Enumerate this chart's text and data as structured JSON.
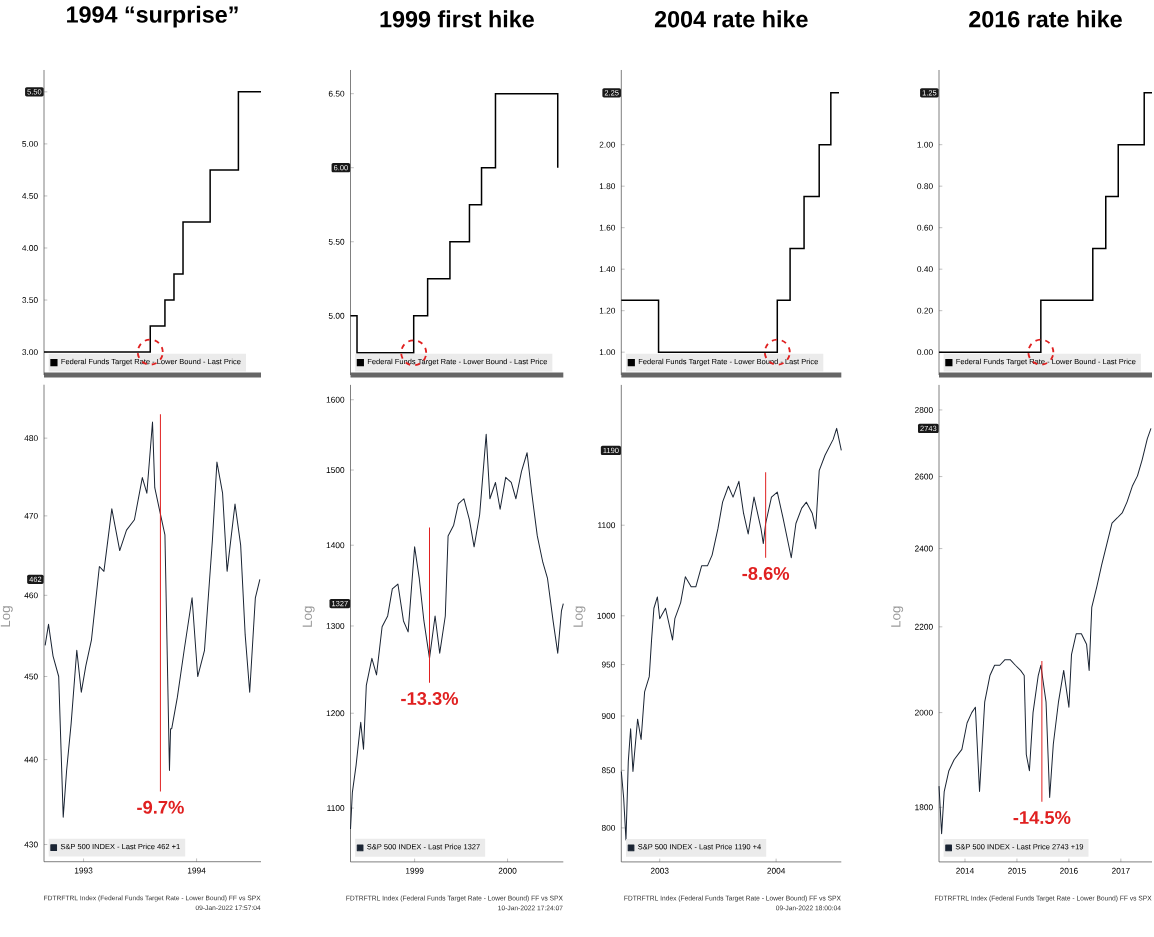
{
  "chart_data": [
    {
      "type": "step",
      "title": "1994 “surprise”",
      "x": [
        1993.15,
        1994.09,
        1994.22,
        1994.3,
        1994.38,
        1994.62,
        1994.87,
        1995.07
      ],
      "series": [
        {
          "name": "Federal Funds Target Rate - Lower Bound - Last Price",
          "color": "#000000",
          "values": [
            3,
            3.25,
            3.5,
            3.75,
            4.25,
            4.75,
            5.5,
            5.5
          ]
        }
      ],
      "xlim": [
        1993.15,
        1995.07
      ],
      "ylim": [
        2.78,
        5.71
      ],
      "yticks": [
        {
          "value": 3,
          "label": "3.00"
        },
        {
          "value": 3.5,
          "label": "3.50"
        },
        {
          "value": 4,
          "label": "4.00"
        },
        {
          "value": 4.5,
          "label": "4.50"
        },
        {
          "value": 5,
          "label": "5.00"
        },
        {
          "value": 5.5,
          "label": null
        }
      ],
      "tick_labels": "y",
      "legend": "bottom left",
      "annotations": [
        "5.50"
      ]
    },
    {
      "type": "line",
      "x": [
        1993.16,
        1993.19,
        1993.23,
        1993.28,
        1993.32,
        1993.35,
        1993.39,
        1993.44,
        1993.48,
        1993.52,
        1993.57,
        1993.64,
        1993.68,
        1993.75,
        1993.82,
        1993.88,
        1993.95,
        1994.02,
        1994.06,
        1994.11,
        1994.13,
        1994.17,
        1994.22,
        1994.26,
        1994.27,
        1994.28,
        1994.33,
        1994.39,
        1994.46,
        1994.51,
        1994.57,
        1994.64,
        1994.68,
        1994.73,
        1994.77,
        1994.84,
        1994.89,
        1994.93,
        1994.97,
        1995.02,
        1995.06
      ],
      "series": [
        {
          "name": "S&P 500 INDEX - Last Price 462 +1",
          "color": "#1a2433",
          "values": [
            453.8,
            456.4,
            452.5,
            450.0,
            433.2,
            438.7,
            444.3,
            453.2,
            448.1,
            451.3,
            454.5,
            463.6,
            463.0,
            470.9,
            465.6,
            468.2,
            469.5,
            474.9,
            472.9,
            482.1,
            473.6,
            470.9,
            467.6,
            438.7,
            443.7,
            443.7,
            447.5,
            453.2,
            459.7,
            450.0,
            453.2,
            466.9,
            476.9,
            472.9,
            463.0,
            471.5,
            466.3,
            455.1,
            448.1,
            459.7,
            462
          ]
        },
        {
          "type": "line",
          "color": "#e02020",
          "x": [
            1994.18,
            1994.18
          ],
          "values": [
            483.1,
            436.2
          ]
        }
      ],
      "xlim": [
        1993.15,
        1995.07
      ],
      "ylim": [
        428,
        487
      ],
      "log": true,
      "ylabel": "Log",
      "yticks": [
        430,
        440,
        450,
        460,
        470,
        480
      ],
      "xticks": [
        {
          "value": 1993.5,
          "label": "1993"
        },
        {
          "value": 1994.5,
          "label": "1994"
        }
      ],
      "legend": "bottom left",
      "annotations": [
        {
          "text": "-9.7%",
          "x": 1994.18,
          "y": 436.2
        },
        "462",
        "FDTRFTRL Index (Federal Funds Target Rate - Lower Bound) FF vs SPX",
        "09-Jan-2022 17:57:04"
      ]
    },
    {
      "type": "step",
      "title": "1999 first hike",
      "x": [
        1998.81,
        1998.88,
        1999.49,
        1999.64,
        1999.88,
        2000.09,
        2000.22,
        2000.37,
        2001.04
      ],
      "series": [
        {
          "name": "Federal Funds Target Rate - Lower Bound - Last Price",
          "color": "#000000",
          "values": [
            5,
            4.75,
            5,
            5.25,
            5.5,
            5.75,
            6,
            6.5,
            6
          ]
        }
      ],
      "xlim": [
        1998.81,
        2001.1
      ],
      "ylim": [
        4.6,
        6.66
      ],
      "yticks": [
        {
          "value": 5,
          "label": "5.00"
        },
        {
          "value": 5.5,
          "label": "5.50"
        },
        {
          "value": 6,
          "label": null
        },
        {
          "value": 6.5,
          "label": "6.50"
        }
      ],
      "tick_labels": "y",
      "legend": "bottom left",
      "annotations": [
        "6.00"
      ]
    },
    {
      "type": "line",
      "x": [
        1998.81,
        1998.83,
        1998.87,
        1998.92,
        1998.95,
        1998.98,
        1999.04,
        1999.09,
        1999.15,
        1999.21,
        1999.26,
        1999.32,
        1999.38,
        1999.43,
        1999.5,
        1999.55,
        1999.6,
        1999.66,
        1999.72,
        1999.77,
        1999.83,
        1999.86,
        1999.92,
        1999.97,
        2000.03,
        2000.09,
        2000.14,
        2000.2,
        2000.27,
        2000.31,
        2000.37,
        2000.42,
        2000.48,
        2000.54,
        2000.59,
        2000.65,
        2000.71,
        2000.76,
        2000.82,
        2000.88,
        2000.93,
        2000.99,
        2001.04,
        2001.08,
        2001.1
      ],
      "series": [
        {
          "name": "S&P 500 INDEX - Last Price 1327",
          "color": "#1a2433",
          "values": [
            1079,
            1116,
            1144,
            1190,
            1161,
            1231,
            1262,
            1243,
            1299,
            1312,
            1345,
            1351,
            1306,
            1293,
            1398,
            1358,
            1306,
            1262,
            1312,
            1268,
            1312,
            1412,
            1426,
            1454,
            1461,
            1433,
            1398,
            1440,
            1550,
            1461,
            1483,
            1447,
            1490,
            1483,
            1461,
            1498,
            1524,
            1469,
            1412,
            1378,
            1358,
            1306,
            1268,
            1318,
            1327
          ]
        },
        {
          "type": "line",
          "color": "#e02020",
          "x": [
            1999.66,
            1999.66
          ],
          "values": [
            1423,
            1234
          ]
        }
      ],
      "xlim": [
        1998.81,
        2001.1
      ],
      "ylim": [
        1047,
        1622
      ],
      "log": true,
      "ylabel": "Log",
      "yticks": [
        1100,
        1200,
        1300,
        1400,
        1500,
        1600
      ],
      "xticks": [
        {
          "value": 1999.5,
          "label": "1999"
        },
        {
          "value": 2000.5,
          "label": "2000"
        }
      ],
      "legend": "bottom left",
      "annotations": [
        {
          "text": "-13.3%",
          "x": 1999.66,
          "y": 1234
        },
        "1327",
        "FDTRFTRL Index (Federal Funds Target Rate - Lower Bound) FF vs SPX",
        "10-Jan-2022 17:24:07"
      ]
    },
    {
      "type": "step",
      "title": "2004 rate hike",
      "x": [
        2003.17,
        2003.49,
        2004.51,
        2004.62,
        2004.74,
        2004.87,
        2004.97,
        2005.04
      ],
      "series": [
        {
          "name": "Federal Funds Target Rate - Lower Bound - Last Price",
          "color": "#000000",
          "values": [
            1.25,
            1,
            1.25,
            1.5,
            1.75,
            2,
            2.25,
            2.25
          ]
        }
      ],
      "xlim": [
        2003.17,
        2005.06
      ],
      "ylim": [
        0.89,
        2.36
      ],
      "yticks": [
        {
          "value": 1,
          "label": "1.00"
        },
        {
          "value": 1.2,
          "label": "1.20"
        },
        {
          "value": 1.4,
          "label": "1.40"
        },
        {
          "value": 1.6,
          "label": "1.60"
        },
        {
          "value": 1.8,
          "label": "1.80"
        },
        {
          "value": 2,
          "label": "2.00"
        }
      ],
      "tick_labels": "y",
      "legend": "bottom left",
      "annotations": [
        "2.25"
      ]
    },
    {
      "type": "line",
      "x": [
        2003.17,
        2003.19,
        2003.21,
        2003.23,
        2003.25,
        2003.27,
        2003.31,
        2003.34,
        2003.37,
        2003.41,
        2003.43,
        2003.45,
        2003.48,
        2003.5,
        2003.55,
        2003.59,
        2003.61,
        2003.63,
        2003.68,
        2003.72,
        2003.77,
        2003.81,
        2003.86,
        2003.91,
        2003.95,
        2004.0,
        2004.04,
        2004.09,
        2004.13,
        2004.18,
        2004.22,
        2004.26,
        2004.31,
        2004.37,
        2004.39,
        2004.41,
        2004.46,
        2004.51,
        2004.56,
        2004.63,
        2004.67,
        2004.72,
        2004.76,
        2004.81,
        2004.84,
        2004.87,
        2004.92,
        2004.99,
        2005.02,
        2005.06
      ],
      "series": [
        {
          "name": "S&P 500 INDEX - Last Price 1190 +4",
          "color": "#1a2433",
          "values": [
            849,
            826,
            790,
            858,
            888,
            849,
            897,
            878,
            923,
            938,
            975,
            1008,
            1020,
            997,
            1008,
            986,
            975,
            997,
            1014,
            1042,
            1031,
            1031,
            1054,
            1054,
            1066,
            1096,
            1127,
            1146,
            1133,
            1152,
            1114,
            1090,
            1133,
            1096,
            1079,
            1102,
            1133,
            1139,
            1108,
            1063,
            1102,
            1120,
            1127,
            1114,
            1096,
            1165,
            1184,
            1204,
            1218,
            1190
          ]
        },
        {
          "type": "line",
          "color": "#e02020",
          "x": [
            2004.41,
            2004.41
          ],
          "values": [
            1163,
            1063
          ]
        }
      ],
      "xlim": [
        2003.17,
        2005.06
      ],
      "ylim": [
        772,
        1275
      ],
      "log": true,
      "ylabel": "Log",
      "yticks": [
        800,
        850,
        900,
        950,
        1000,
        1100
      ],
      "xticks": [
        {
          "value": 2003.5,
          "label": "2003"
        },
        {
          "value": 2004.5,
          "label": "2004"
        }
      ],
      "legend": "bottom left",
      "annotations": [
        {
          "text": "-8.6%",
          "x": 2004.41,
          "y": 1063
        },
        "1190",
        "FDTRFTRL Index (Federal Funds Target Rate - Lower Bound) FF vs SPX",
        "09-Jan-2022 18:00:04"
      ]
    },
    {
      "type": "step",
      "title": "2016 rate hike",
      "x": [
        2014.0,
        2015.96,
        2016.96,
        2017.21,
        2017.45,
        2017.95,
        2018.1
      ],
      "series": [
        {
          "name": "Federal Funds Target Rate - Lower Bound - Last Price",
          "color": "#000000",
          "values": [
            0,
            0.25,
            0.5,
            0.75,
            1,
            1.25,
            1.25
          ]
        }
      ],
      "xlim": [
        2014.0,
        2018.1
      ],
      "ylim": [
        -0.11,
        1.36
      ],
      "yticks": [
        {
          "value": 0,
          "label": "0.00"
        },
        {
          "value": 0.2,
          "label": "0.20"
        },
        {
          "value": 0.4,
          "label": "0.40"
        },
        {
          "value": 0.6,
          "label": "0.60"
        },
        {
          "value": 0.8,
          "label": "0.80"
        },
        {
          "value": 1,
          "label": "1.00"
        }
      ],
      "tick_labels": "y",
      "legend": "bottom left",
      "annotations": [
        "1.25"
      ]
    },
    {
      "type": "line",
      "x": [
        2014.0,
        2014.05,
        2014.1,
        2014.19,
        2014.29,
        2014.44,
        2014.54,
        2014.63,
        2014.7,
        2014.78,
        2014.88,
        2014.98,
        2015.07,
        2015.17,
        2015.27,
        2015.37,
        2015.47,
        2015.57,
        2015.64,
        2015.68,
        2015.74,
        2015.81,
        2015.91,
        2015.96,
        2016.06,
        2016.13,
        2016.2,
        2016.3,
        2016.4,
        2016.5,
        2016.55,
        2016.64,
        2016.74,
        2016.84,
        2016.89,
        2016.94,
        2017.04,
        2017.13,
        2017.23,
        2017.33,
        2017.43,
        2017.53,
        2017.62,
        2017.72,
        2017.82,
        2017.91,
        2018.01,
        2018.08
      ],
      "series": [
        {
          "name": "S&P 500 INDEX - Last Price 2743 +19",
          "color": "#1a2433",
          "values": [
            1843,
            1748,
            1832,
            1875,
            1898,
            1920,
            1977,
            2000,
            2012,
            1832,
            2024,
            2084,
            2108,
            2108,
            2121,
            2121,
            2108,
            2096,
            2084,
            1909,
            1875,
            2000,
            2084,
            2108,
            2024,
            1820,
            1931,
            2024,
            2096,
            2012,
            2133,
            2183,
            2183,
            2158,
            2096,
            2248,
            2302,
            2356,
            2412,
            2469,
            2483,
            2498,
            2528,
            2572,
            2602,
            2649,
            2712,
            2743
          ]
        },
        {
          "type": "line",
          "color": "#e02020",
          "x": [
            2015.98,
            2015.98
          ],
          "values": [
            2118,
            1811
          ]
        }
      ],
      "xlim": [
        2014.0,
        2018.1
      ],
      "ylim": [
        1694,
        2879
      ],
      "log": true,
      "ylabel": "Log",
      "yticks": [
        1800,
        2000,
        2200,
        2400,
        2600,
        2800
      ],
      "xticks": [
        {
          "value": 2014.5,
          "label": "2014"
        },
        {
          "value": 2015.5,
          "label": "2015"
        },
        {
          "value": 2016.5,
          "label": "2016"
        },
        {
          "value": 2017.5,
          "label": "2017"
        }
      ],
      "legend": "bottom left",
      "annotations": [
        {
          "text": "-14.5%",
          "x": 2015.98,
          "y": 1811
        },
        "2743",
        "FDTRFTRL Index (Federal Funds Target Rate - Lower Bound) FF vs SPX"
      ]
    }
  ]
}
